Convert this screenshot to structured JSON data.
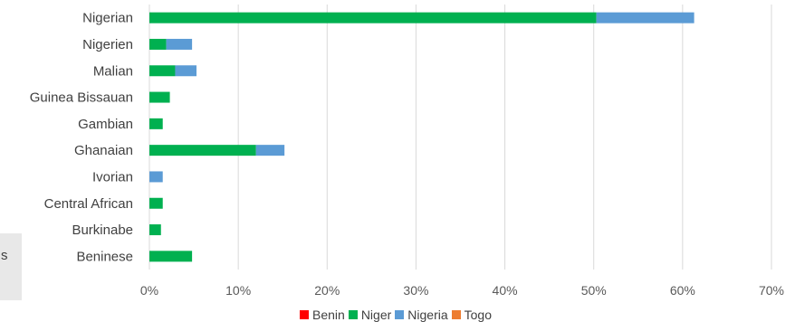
{
  "side_panel": {
    "text": "s"
  },
  "chart_data": {
    "type": "bar",
    "orientation": "horizontal",
    "stacked": true,
    "categories": [
      "Nigerian",
      "Nigerien",
      "Malian",
      "Guinea Bissauan",
      "Gambian",
      "Ghanaian",
      "Ivorian",
      "Central African",
      "Burkinabe",
      "Beninese"
    ],
    "series": [
      {
        "name": "Benin",
        "color": "#ff0000",
        "values": [
          0,
          0,
          0,
          0,
          0,
          0,
          0,
          0,
          0,
          0
        ]
      },
      {
        "name": "Niger",
        "color": "#00b050",
        "values": [
          50.3,
          1.9,
          2.9,
          2.3,
          1.5,
          12.0,
          0,
          1.5,
          1.3,
          4.8
        ]
      },
      {
        "name": "Nigeria",
        "color": "#5b9bd5",
        "values": [
          11.0,
          2.9,
          2.4,
          0,
          0,
          3.2,
          1.5,
          0,
          0,
          0
        ]
      },
      {
        "name": "Togo",
        "color": "#ed7d31",
        "values": [
          0,
          0,
          0,
          0,
          0,
          0,
          0,
          0,
          0,
          0
        ]
      }
    ],
    "xlim": [
      0,
      70
    ],
    "x_ticks": [
      "0%",
      "10%",
      "20%",
      "30%",
      "40%",
      "50%",
      "60%",
      "70%"
    ],
    "x_unit": "%",
    "grid": true,
    "legend_position": "bottom"
  }
}
